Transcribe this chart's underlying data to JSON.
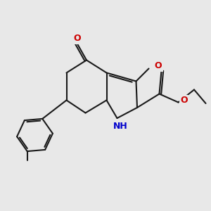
{
  "bg": "#e8e8e8",
  "bc": "#1a1a1a",
  "bw": 1.5,
  "dbo": 0.07,
  "Nc": "#0000cc",
  "Oc": "#cc0000",
  "fs": 9.0,
  "sfs": 8.0,
  "figsize": [
    3.0,
    3.0
  ],
  "dpi": 100,
  "xlim": [
    0,
    10
  ],
  "ylim": [
    0,
    10
  ]
}
